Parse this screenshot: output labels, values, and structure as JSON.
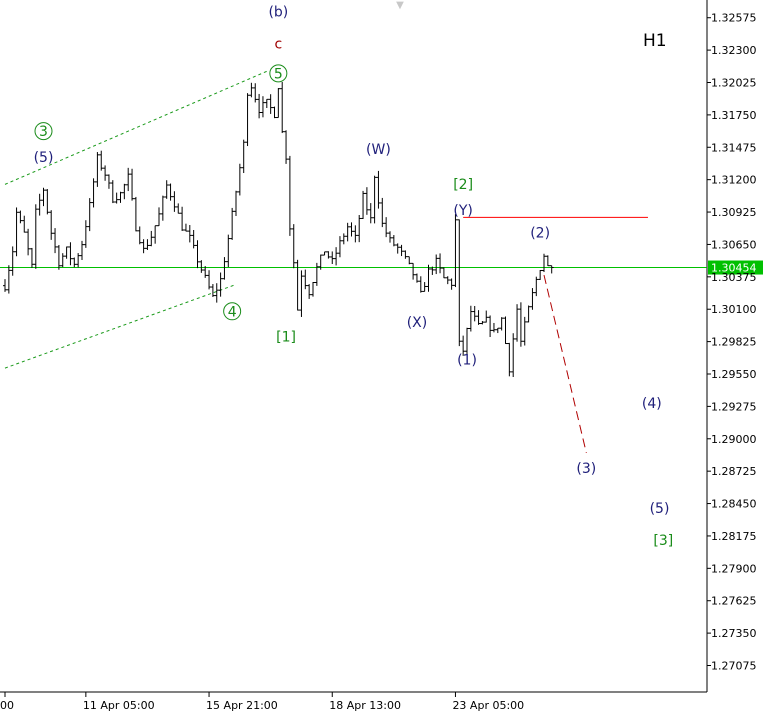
{
  "chart_data": {
    "type": "bar",
    "timeframe": "H1",
    "ylim": [
      1.2685,
      1.327
    ],
    "y_ticks": [
      "1.32575",
      "1.32300",
      "1.32025",
      "1.31750",
      "1.31475",
      "1.31200",
      "1.30925",
      "1.30650",
      "1.30375",
      "1.30100",
      "1.29825",
      "1.29550",
      "1.29275",
      "1.29000",
      "1.28725",
      "1.28450",
      "1.28175",
      "1.27900",
      "1.27625",
      "1.27350",
      "1.27075"
    ],
    "x_ticks": [
      {
        "label": "00",
        "bar": 0
      },
      {
        "label": "11 Apr 05:00",
        "bar": 21
      },
      {
        "label": "15 Apr 21:00",
        "bar": 53
      },
      {
        "label": "18 Apr 13:00",
        "bar": 85
      },
      {
        "label": "23 Apr 05:00",
        "bar": 117
      }
    ],
    "current_price": {
      "value": 1.30454,
      "label": "1.30454",
      "color": "#00c000"
    },
    "resistance_line": {
      "price": 1.3088,
      "from_bar": 119,
      "to_bar": 167,
      "color": "#ff0000"
    },
    "channel_lines": [
      {
        "from": [
          0,
          1.3116
        ],
        "to": [
          68,
          1.3212
        ]
      },
      {
        "from": [
          0,
          1.296
        ],
        "to": [
          60,
          1.3031
        ]
      }
    ],
    "projection": {
      "from": [
        140,
        1.3039
      ],
      "to": [
        151,
        1.2888
      ],
      "color": "#b00000"
    },
    "ohlc_path": [
      [
        0,
        1.303
      ],
      [
        2,
        1.306
      ],
      [
        3,
        1.3092
      ],
      [
        5,
        1.3074
      ],
      [
        7,
        1.3046
      ],
      [
        8,
        1.3092
      ],
      [
        10,
        1.3112
      ],
      [
        12,
        1.3075
      ],
      [
        14,
        1.305
      ],
      [
        16,
        1.306
      ],
      [
        18,
        1.3048
      ],
      [
        20,
        1.3066
      ],
      [
        22,
        1.3098
      ],
      [
        24,
        1.3138
      ],
      [
        26,
        1.3125
      ],
      [
        28,
        1.3104
      ],
      [
        30,
        1.3108
      ],
      [
        32,
        1.3122
      ],
      [
        34,
        1.308
      ],
      [
        36,
        1.306
      ],
      [
        38,
        1.3072
      ],
      [
        40,
        1.309
      ],
      [
        42,
        1.3115
      ],
      [
        44,
        1.31
      ],
      [
        46,
        1.308
      ],
      [
        48,
        1.307
      ],
      [
        50,
        1.3052
      ],
      [
        52,
        1.3036
      ],
      [
        54,
        1.302
      ],
      [
        56,
        1.3035
      ],
      [
        58,
        1.307
      ],
      [
        60,
        1.311
      ],
      [
        62,
        1.315
      ],
      [
        63,
        1.3195
      ],
      [
        64,
        1.32
      ],
      [
        66,
        1.318
      ],
      [
        68,
        1.3185
      ],
      [
        70,
        1.3176
      ],
      [
        71,
        1.32
      ],
      [
        72,
        1.316
      ],
      [
        73,
        1.314
      ],
      [
        74,
        1.308
      ],
      [
        75,
        1.305
      ],
      [
        76,
        1.301
      ],
      [
        77,
        1.304
      ],
      [
        79,
        1.3025
      ],
      [
        81,
        1.3045
      ],
      [
        83,
        1.306
      ],
      [
        85,
        1.305
      ],
      [
        87,
        1.3066
      ],
      [
        89,
        1.308
      ],
      [
        91,
        1.307
      ],
      [
        93,
        1.3105
      ],
      [
        95,
        1.3086
      ],
      [
        96,
        1.3124
      ],
      [
        98,
        1.3082
      ],
      [
        100,
        1.3068
      ],
      [
        102,
        1.3062
      ],
      [
        104,
        1.3052
      ],
      [
        106,
        1.304
      ],
      [
        108,
        1.3022
      ],
      [
        110,
        1.3042
      ],
      [
        112,
        1.305
      ],
      [
        114,
        1.3036
      ],
      [
        116,
        1.3032
      ],
      [
        117,
        1.3085
      ],
      [
        118,
        1.298
      ],
      [
        119,
        1.2975
      ],
      [
        121,
        1.3008
      ],
      [
        123,
        1.2995
      ],
      [
        125,
        1.3
      ],
      [
        127,
        1.299
      ],
      [
        129,
        1.3002
      ],
      [
        131,
        1.296
      ],
      [
        133,
        1.301
      ],
      [
        134,
        1.2982
      ],
      [
        136,
        1.301
      ],
      [
        138,
        1.3035
      ],
      [
        140,
        1.3056
      ],
      [
        141,
        1.3046
      ],
      [
        142,
        1.3046
      ]
    ],
    "wave_labels": [
      {
        "text": "(b)",
        "bar": 71,
        "price": 1.32585,
        "color": "#1f1f7a"
      },
      {
        "text": "c",
        "bar": 71,
        "price": 1.32315,
        "color": "#a00000"
      },
      {
        "text": "5",
        "bar": 71,
        "price": 1.3206,
        "color": "#1a8c1a",
        "circled": true
      },
      {
        "text": "3",
        "bar": 10,
        "price": 1.3157,
        "color": "#1a8c1a",
        "circled": true
      },
      {
        "text": "(5)",
        "bar": 10,
        "price": 1.3135,
        "color": "#1f1f7a"
      },
      {
        "text": "4",
        "bar": 59,
        "price": 1.3004,
        "color": "#1a8c1a",
        "circled": true
      },
      {
        "text": "[1]",
        "bar": 73,
        "price": 1.29825,
        "color": "#1a8c1a"
      },
      {
        "text": "(W)",
        "bar": 97,
        "price": 1.3142,
        "color": "#1f1f7a"
      },
      {
        "text": "(X)",
        "bar": 107,
        "price": 1.2995,
        "color": "#1f1f7a"
      },
      {
        "text": "[2]",
        "bar": 119,
        "price": 1.3112,
        "color": "#1a8c1a"
      },
      {
        "text": "(Y)",
        "bar": 119,
        "price": 1.309,
        "color": "#1f1f7a"
      },
      {
        "text": "(1)",
        "bar": 120,
        "price": 1.2963,
        "color": "#1f1f7a"
      },
      {
        "text": "(2)",
        "bar": 139,
        "price": 1.3071,
        "color": "#1f1f7a"
      },
      {
        "text": "(3)",
        "bar": 151,
        "price": 1.2871,
        "color": "#1f1f7a"
      },
      {
        "text": "(4)",
        "bar": 168,
        "price": 1.2926,
        "color": "#1f1f7a"
      },
      {
        "text": "(5)",
        "bar": 170,
        "price": 1.2837,
        "color": "#1f1f7a"
      },
      {
        "text": "[3]",
        "bar": 171,
        "price": 1.281,
        "color": "#1a8c1a"
      }
    ]
  }
}
